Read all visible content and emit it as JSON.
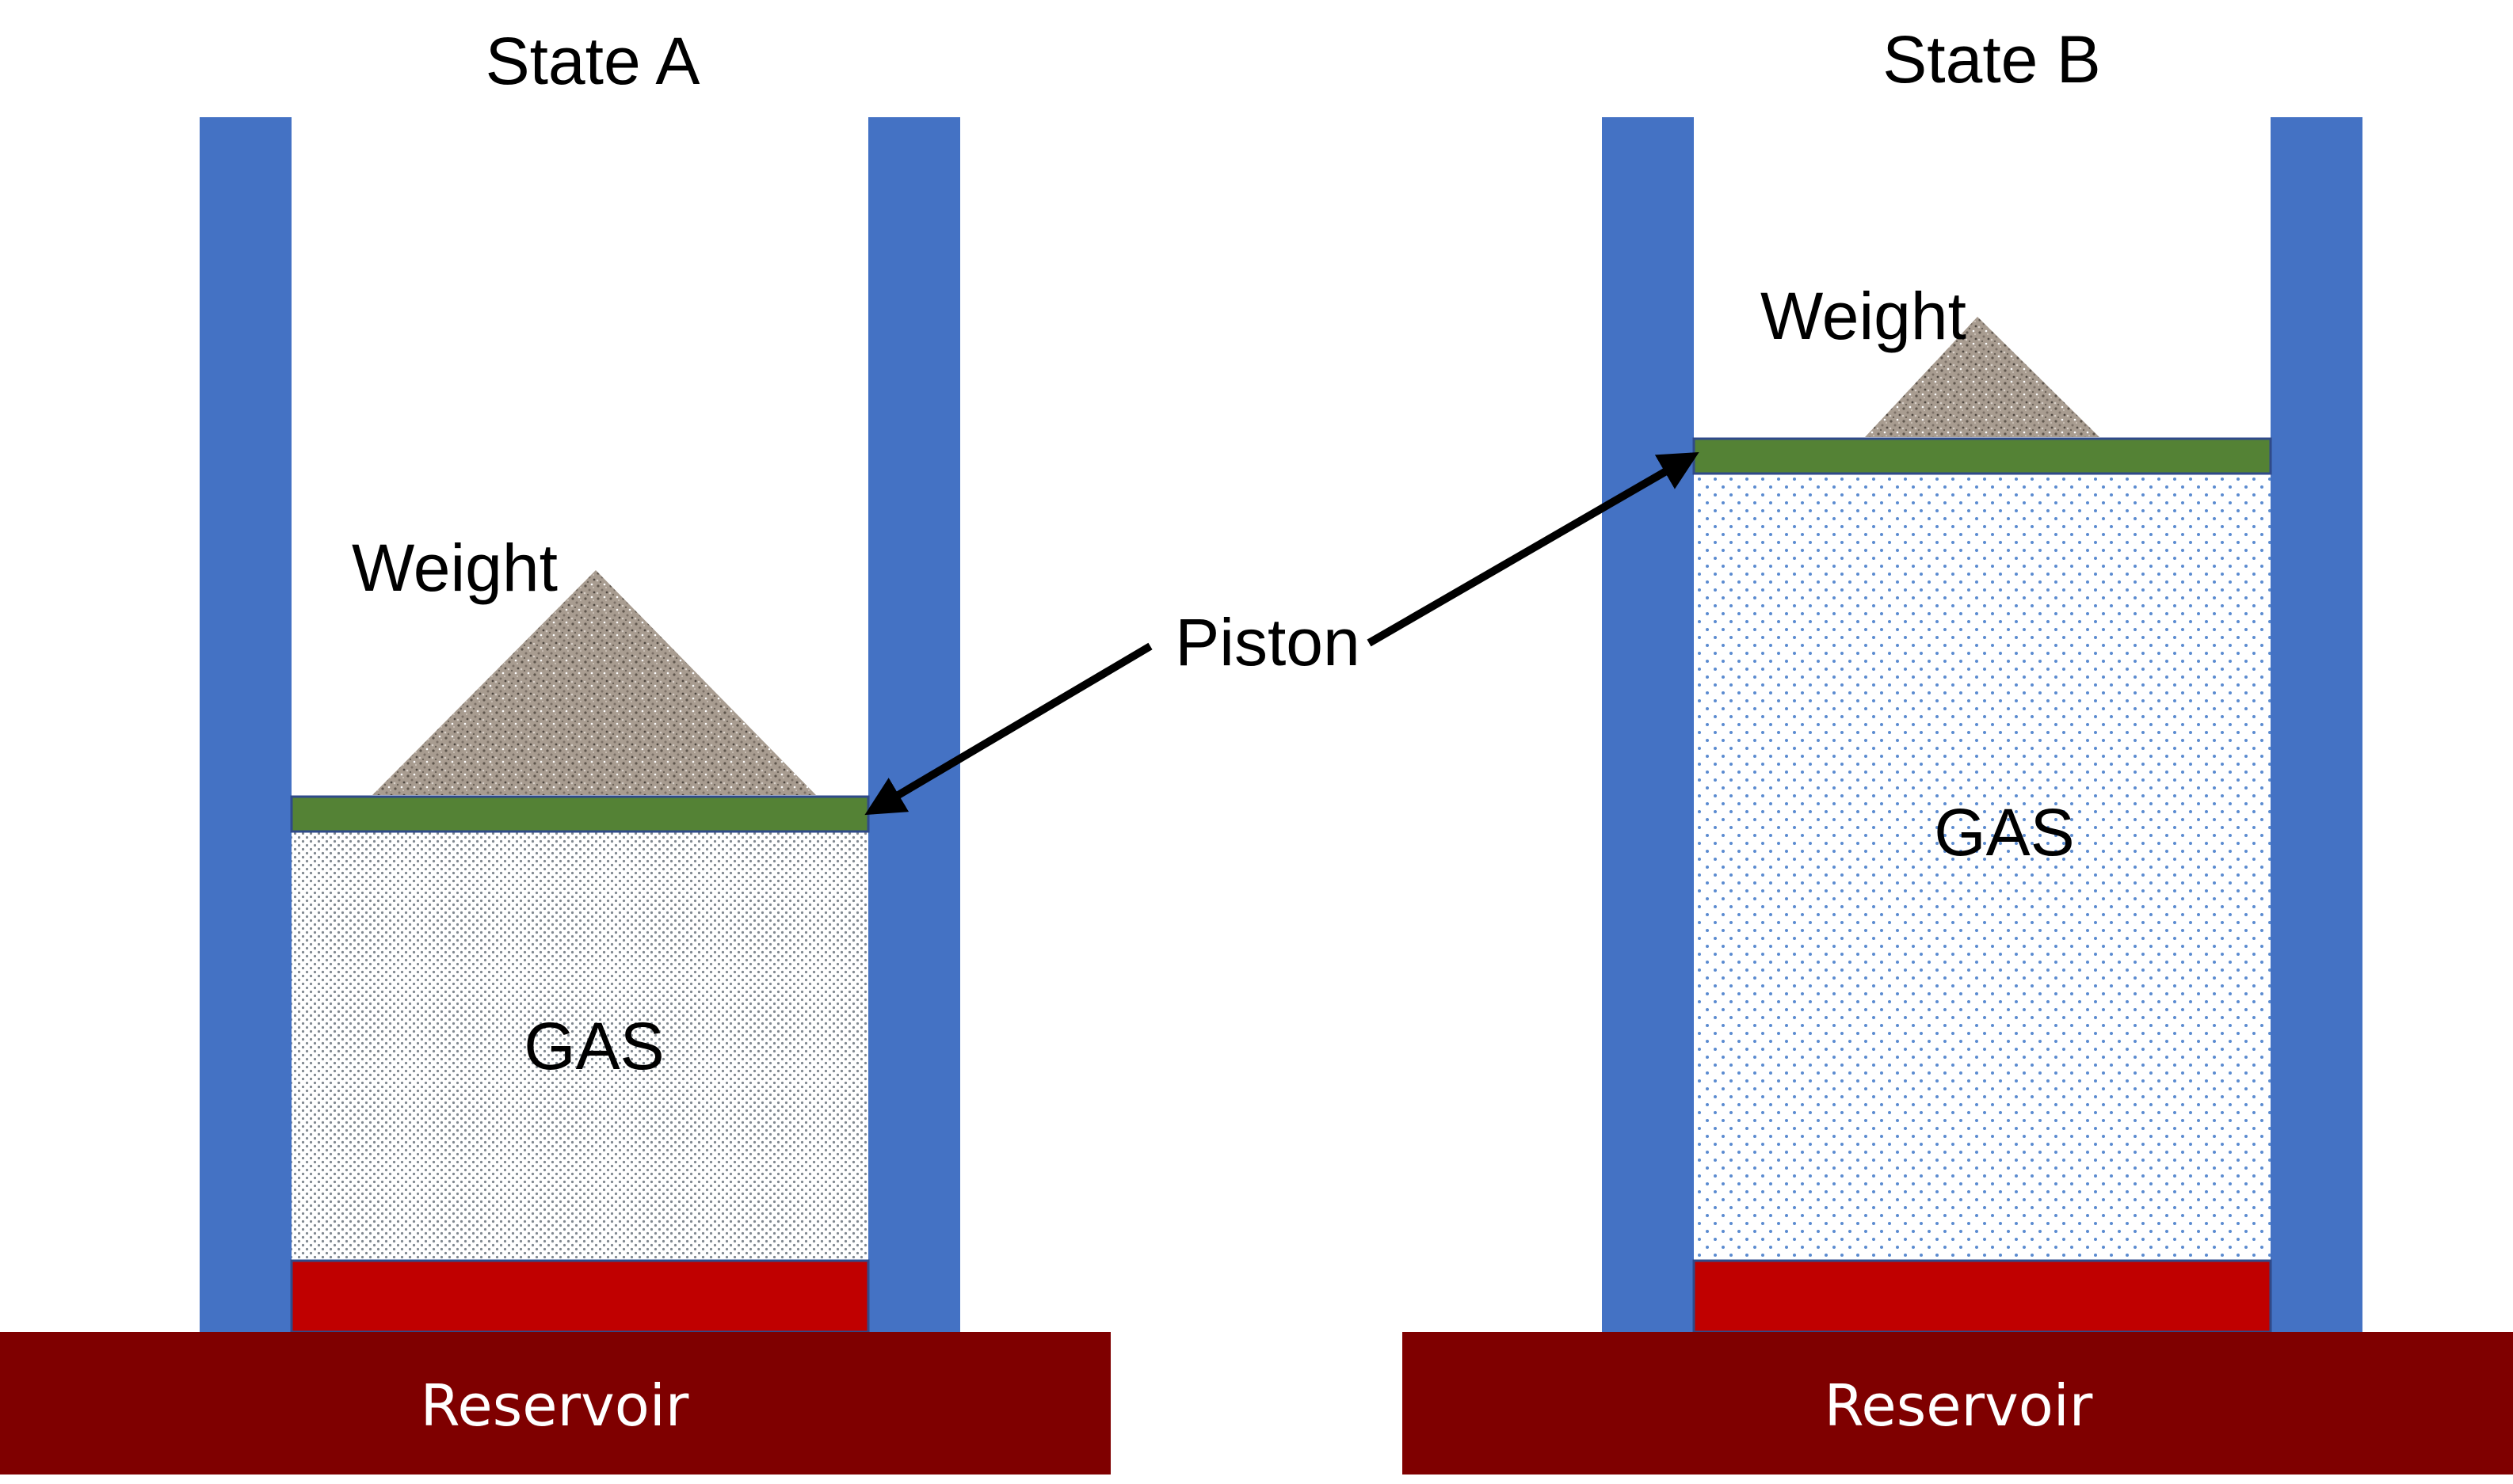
{
  "states": [
    {
      "title": "State A",
      "weight_label": "Weight",
      "gas_label": "GAS",
      "reservoir_label": "Reservoir"
    },
    {
      "title": "State B",
      "weight_label": "Weight",
      "gas_label": "GAS",
      "reservoir_label": "Reservoir"
    }
  ],
  "piston_label": "Piston",
  "colors": {
    "cylinder_wall": "#4472c4",
    "piston": "#548235",
    "heater": "#c00000",
    "reservoir": "#7f0000",
    "weight": "#a89c90",
    "gas_dots_dense": "#808890",
    "gas_dots_sparse": "#5b8bd0",
    "arrow": "#000000"
  }
}
